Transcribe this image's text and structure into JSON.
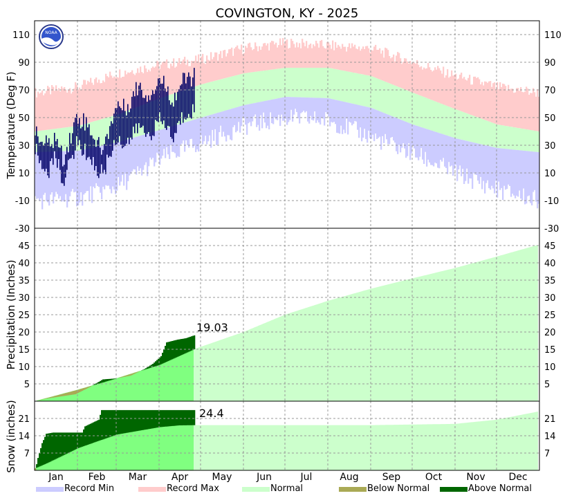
{
  "chart_data": {
    "type": "area",
    "title": "COVINGTON, KY - 2025",
    "months": [
      "Jan",
      "Feb",
      "Mar",
      "Apr",
      "May",
      "Jun",
      "Jul",
      "Aug",
      "Sep",
      "Oct",
      "Nov",
      "Dec"
    ],
    "colors": {
      "record_min": "#ccccff",
      "record_max": "#ffcccc",
      "normal": "#ccffcc",
      "normal_ytd": "#80ff80",
      "below_normal": "#aaaa55",
      "above_normal": "#006600",
      "observed_temp": "#000066",
      "grid": "#999999"
    },
    "temperature": {
      "ylabel": "Temperature (Deg F)",
      "ylim": [
        -30,
        120
      ],
      "ticks": [
        -30,
        -10,
        10,
        30,
        50,
        70,
        90,
        110
      ],
      "normal_high": [
        {
          "doy": 1,
          "v": 40
        },
        {
          "doy": 32,
          "v": 44
        },
        {
          "doy": 60,
          "v": 52
        },
        {
          "doy": 91,
          "v": 64
        },
        {
          "doy": 121,
          "v": 74
        },
        {
          "doy": 152,
          "v": 82
        },
        {
          "doy": 182,
          "v": 86
        },
        {
          "doy": 213,
          "v": 86
        },
        {
          "doy": 244,
          "v": 80
        },
        {
          "doy": 274,
          "v": 68
        },
        {
          "doy": 305,
          "v": 56
        },
        {
          "doy": 335,
          "v": 45
        },
        {
          "doy": 365,
          "v": 40
        }
      ],
      "normal_low": [
        {
          "doy": 1,
          "v": 25
        },
        {
          "doy": 32,
          "v": 26
        },
        {
          "doy": 60,
          "v": 32
        },
        {
          "doy": 91,
          "v": 41
        },
        {
          "doy": 121,
          "v": 50
        },
        {
          "doy": 152,
          "v": 59
        },
        {
          "doy": 182,
          "v": 65
        },
        {
          "doy": 213,
          "v": 64
        },
        {
          "doy": 244,
          "v": 57
        },
        {
          "doy": 274,
          "v": 45
        },
        {
          "doy": 305,
          "v": 35
        },
        {
          "doy": 335,
          "v": 28
        },
        {
          "doy": 365,
          "v": 25
        }
      ],
      "record_high": [
        {
          "doy": 1,
          "v": 68
        },
        {
          "doy": 32,
          "v": 72
        },
        {
          "doy": 60,
          "v": 82
        },
        {
          "doy": 91,
          "v": 88
        },
        {
          "doy": 121,
          "v": 92
        },
        {
          "doy": 152,
          "v": 100
        },
        {
          "doy": 182,
          "v": 104
        },
        {
          "doy": 213,
          "v": 102
        },
        {
          "doy": 244,
          "v": 100
        },
        {
          "doy": 274,
          "v": 90
        },
        {
          "doy": 305,
          "v": 80
        },
        {
          "doy": 335,
          "v": 72
        },
        {
          "doy": 365,
          "v": 68
        }
      ],
      "record_low": [
        {
          "doy": 1,
          "v": -10
        },
        {
          "doy": 32,
          "v": -8
        },
        {
          "doy": 60,
          "v": 0
        },
        {
          "doy": 91,
          "v": 20
        },
        {
          "doy": 121,
          "v": 32
        },
        {
          "doy": 152,
          "v": 44
        },
        {
          "doy": 182,
          "v": 50
        },
        {
          "doy": 213,
          "v": 48
        },
        {
          "doy": 244,
          "v": 36
        },
        {
          "doy": 274,
          "v": 24
        },
        {
          "doy": 305,
          "v": 10
        },
        {
          "doy": 335,
          "v": -2
        },
        {
          "doy": 365,
          "v": -10
        }
      ],
      "observed": [
        {
          "doy": 1,
          "hi": 38,
          "lo": 28
        },
        {
          "doy": 6,
          "hi": 32,
          "lo": 14
        },
        {
          "doy": 11,
          "hi": 30,
          "lo": 12
        },
        {
          "doy": 16,
          "hi": 36,
          "lo": 22
        },
        {
          "doy": 21,
          "hi": 20,
          "lo": 4
        },
        {
          "doy": 26,
          "hi": 34,
          "lo": 16
        },
        {
          "doy": 31,
          "hi": 50,
          "lo": 32
        },
        {
          "doy": 36,
          "hi": 48,
          "lo": 26
        },
        {
          "doy": 41,
          "hi": 42,
          "lo": 22
        },
        {
          "doy": 46,
          "hi": 30,
          "lo": 10
        },
        {
          "doy": 51,
          "hi": 28,
          "lo": 12
        },
        {
          "doy": 56,
          "hi": 48,
          "lo": 26
        },
        {
          "doy": 61,
          "hi": 60,
          "lo": 36
        },
        {
          "doy": 66,
          "hi": 56,
          "lo": 30
        },
        {
          "doy": 71,
          "hi": 64,
          "lo": 36
        },
        {
          "doy": 76,
          "hi": 74,
          "lo": 44
        },
        {
          "doy": 81,
          "hi": 66,
          "lo": 38
        },
        {
          "doy": 86,
          "hi": 70,
          "lo": 40
        },
        {
          "doy": 91,
          "hi": 78,
          "lo": 48
        },
        {
          "doy": 96,
          "hi": 72,
          "lo": 44
        },
        {
          "doy": 101,
          "hi": 62,
          "lo": 34
        },
        {
          "doy": 106,
          "hi": 74,
          "lo": 48
        },
        {
          "doy": 111,
          "hi": 78,
          "lo": 54
        },
        {
          "doy": 116,
          "hi": 80,
          "lo": 56
        }
      ]
    },
    "precipitation": {
      "ylabel": "Precipitation (Inches)",
      "ylim": [
        0,
        50
      ],
      "ticks": [
        5,
        10,
        15,
        20,
        25,
        30,
        35,
        40,
        45
      ],
      "observed_total": "19.03",
      "normal": [
        {
          "doy": 1,
          "v": 0
        },
        {
          "doy": 32,
          "v": 3.3
        },
        {
          "doy": 60,
          "v": 6.6
        },
        {
          "doy": 91,
          "v": 10.5
        },
        {
          "doy": 116,
          "v": 15.0
        },
        {
          "doy": 152,
          "v": 20.0
        },
        {
          "doy": 182,
          "v": 25.0
        },
        {
          "doy": 213,
          "v": 29.0
        },
        {
          "doy": 244,
          "v": 32.5
        },
        {
          "doy": 274,
          "v": 35.5
        },
        {
          "doy": 305,
          "v": 38.5
        },
        {
          "doy": 335,
          "v": 41.8
        },
        {
          "doy": 365,
          "v": 45.2
        }
      ],
      "observed": [
        {
          "doy": 1,
          "v": 0
        },
        {
          "doy": 10,
          "v": 0.8
        },
        {
          "doy": 20,
          "v": 1.4
        },
        {
          "doy": 30,
          "v": 2.0
        },
        {
          "doy": 40,
          "v": 4.0
        },
        {
          "doy": 50,
          "v": 6.3
        },
        {
          "doy": 60,
          "v": 6.6
        },
        {
          "doy": 70,
          "v": 7.4
        },
        {
          "doy": 80,
          "v": 9.3
        },
        {
          "doy": 86,
          "v": 10.8
        },
        {
          "doy": 92,
          "v": 13.0
        },
        {
          "doy": 96,
          "v": 17.0
        },
        {
          "doy": 104,
          "v": 17.8
        },
        {
          "doy": 110,
          "v": 18.2
        },
        {
          "doy": 116,
          "v": 19.03
        }
      ]
    },
    "snow": {
      "ylabel": "Snow (inches)",
      "ylim": [
        0,
        28
      ],
      "ticks": [
        7,
        14,
        21
      ],
      "observed_total": "24.4",
      "normal": [
        {
          "doy": 1,
          "v": 0.8
        },
        {
          "doy": 10,
          "v": 3
        },
        {
          "doy": 32,
          "v": 9
        },
        {
          "doy": 60,
          "v": 14.5
        },
        {
          "doy": 91,
          "v": 17.5
        },
        {
          "doy": 105,
          "v": 18.2
        },
        {
          "doy": 116,
          "v": 18.3
        },
        {
          "doy": 244,
          "v": 18.3
        },
        {
          "doy": 305,
          "v": 18.8
        },
        {
          "doy": 335,
          "v": 20.5
        },
        {
          "doy": 365,
          "v": 23.8
        }
      ],
      "observed": [
        {
          "doy": 1,
          "v": 0
        },
        {
          "doy": 3,
          "v": 5
        },
        {
          "doy": 6,
          "v": 11
        },
        {
          "doy": 9,
          "v": 14.8
        },
        {
          "doy": 14,
          "v": 15.3
        },
        {
          "doy": 35,
          "v": 15.3
        },
        {
          "doy": 37,
          "v": 17.8
        },
        {
          "doy": 44,
          "v": 19.7
        },
        {
          "doy": 47,
          "v": 20.5
        },
        {
          "doy": 49,
          "v": 24.4
        },
        {
          "doy": 116,
          "v": 24.4
        }
      ]
    },
    "legend": [
      {
        "label": "Record Min",
        "color": "#ccccff"
      },
      {
        "label": "Record Max",
        "color": "#ffcccc"
      },
      {
        "label": "Normal",
        "color": "#ccffcc"
      },
      {
        "label": "Below Normal",
        "color": "#aaaa55"
      },
      {
        "label": "Above Normal",
        "color": "#006600"
      }
    ],
    "logo_text": "NOAA"
  }
}
